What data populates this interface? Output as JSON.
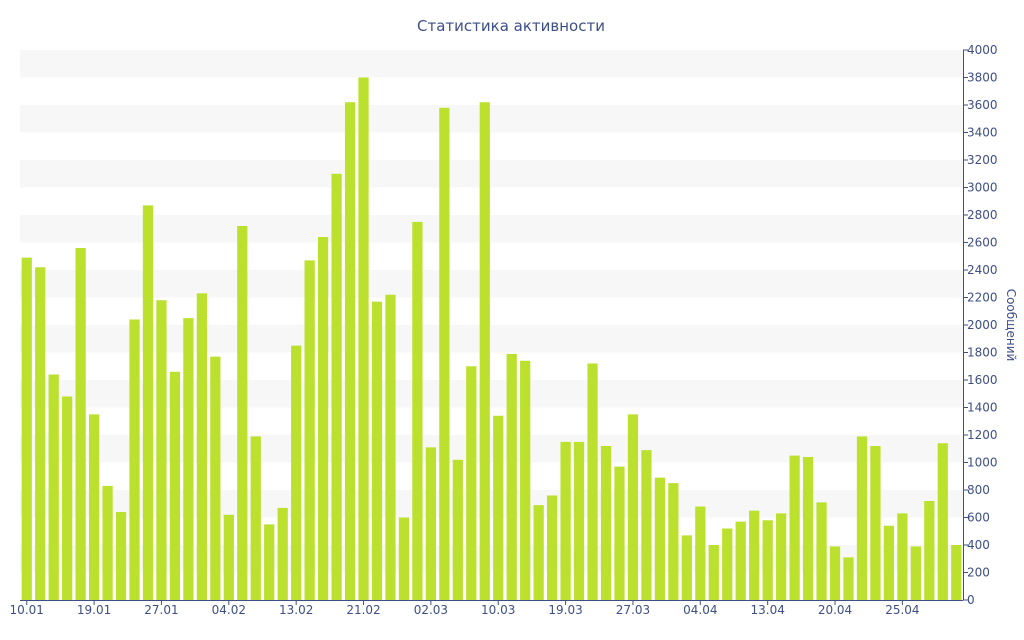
{
  "chart_data": {
    "type": "bar",
    "title": "Статистика активности",
    "ylabel": "Сообщений",
    "xlabel": "",
    "ylim": [
      0,
      4000
    ],
    "y_tick_step": 200,
    "y_axis_position": "right",
    "grid": "alternating horizontal bands",
    "legend": "none",
    "bar_color": "#bbe12e",
    "text_color": "#3e4f86",
    "band_color": "#f7f7f7",
    "x_tick_labels": [
      "10.01",
      "19.01",
      "27.01",
      "04.02",
      "13.02",
      "21.02",
      "02.03",
      "10.03",
      "19.03",
      "27.03",
      "04.04",
      "13.04",
      "20.04",
      "25.04"
    ],
    "x_tick_indices": [
      0,
      5,
      10,
      15,
      20,
      25,
      30,
      35,
      40,
      45,
      50,
      55,
      60,
      65
    ],
    "values": [
      2490,
      2420,
      1640,
      1480,
      2560,
      1350,
      830,
      640,
      2040,
      2870,
      2180,
      1660,
      2050,
      2230,
      1770,
      620,
      2720,
      1190,
      550,
      670,
      1850,
      2470,
      2640,
      3100,
      3620,
      3800,
      2170,
      2220,
      600,
      2750,
      1110,
      3580,
      1020,
      1700,
      3620,
      1340,
      1790,
      1740,
      690,
      760,
      1150,
      1150,
      1720,
      1120,
      970,
      1350,
      1090,
      890,
      850,
      470,
      680,
      400,
      520,
      570,
      650,
      580,
      630,
      1050,
      1040,
      710,
      390,
      310,
      1190,
      1120,
      540,
      630,
      390,
      720,
      1140,
      400
    ]
  }
}
